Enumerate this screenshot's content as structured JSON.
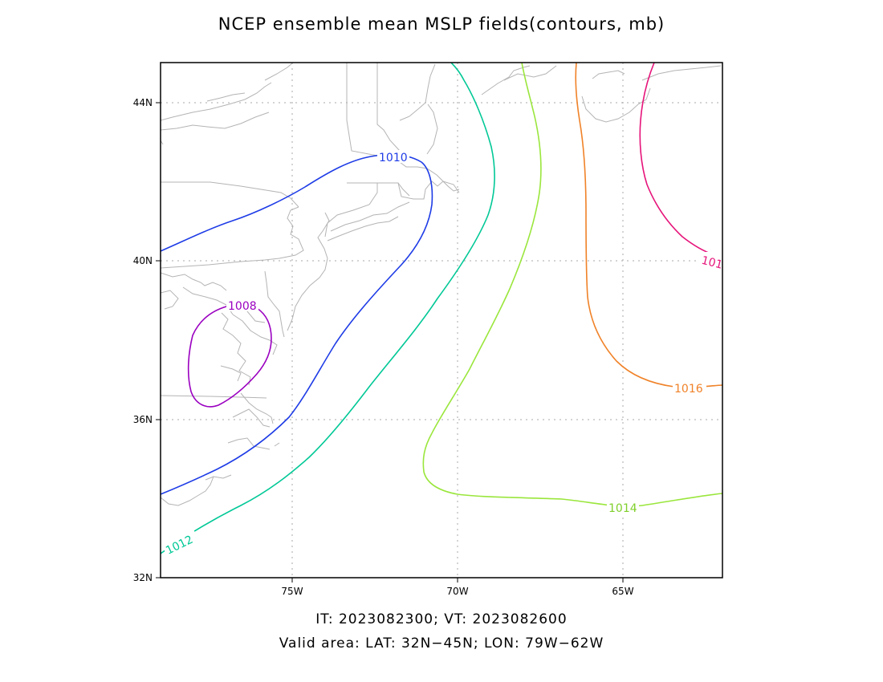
{
  "title": "NCEP ensemble mean MSLP fields(contours, mb)",
  "footer": {
    "line1": "IT: 2023082300; VT: 2023082600",
    "line2": "Valid area: LAT: 32N−45N; LON: 79W−62W"
  },
  "axes": {
    "lat_labels": [
      "44N",
      "40N",
      "36N",
      "32N"
    ],
    "lon_labels": [
      "75W",
      "70W",
      "65W"
    ]
  },
  "contours": [
    {
      "label": "1008",
      "color": "#9a00c0"
    },
    {
      "label": "1010",
      "color": "#1e3ce6"
    },
    {
      "label": "1012",
      "color": "#00c896"
    },
    {
      "label": "1014",
      "color": "#9ae63c"
    },
    {
      "label": "1016",
      "color": "#f08228"
    },
    {
      "label": "101",
      "color": "#e6147a"
    }
  ]
}
